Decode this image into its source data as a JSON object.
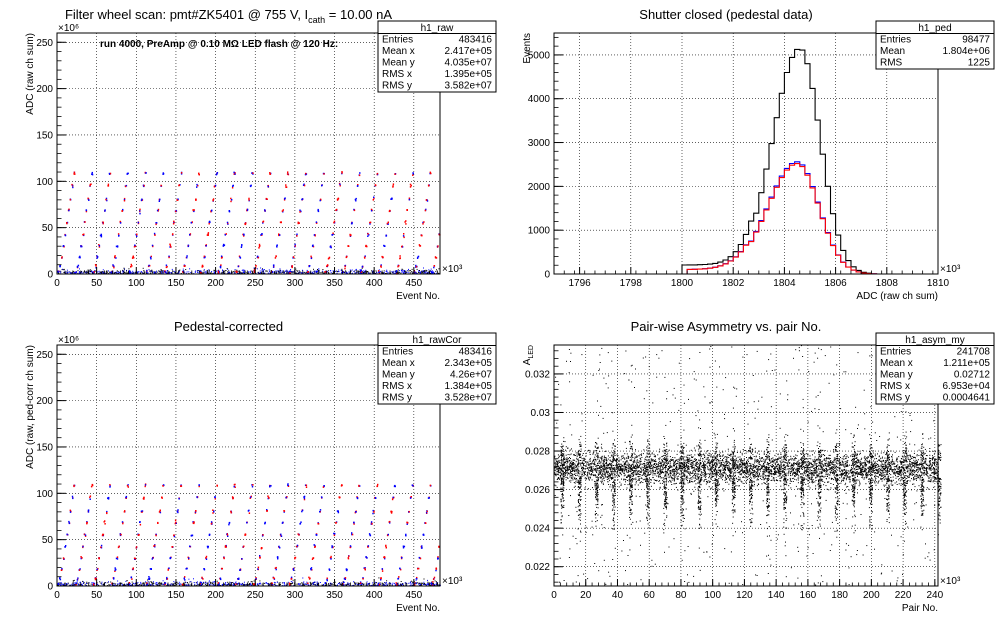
{
  "chart_data": [
    {
      "type": "scatter",
      "title": "Filter wheel scan: pmt#ZK5401 @   755 V, I",
      "title_sub": "cath",
      "title_tail": " = 10.00 nA",
      "annotation": "run 4000, PreAmp @ 0.10 MΩ LED flash @  120 Hz:",
      "xlabel": "Event No.",
      "ylabel": "ADC (raw ch sum)",
      "xlim": [
        0,
        483
      ],
      "ylim": [
        0,
        260
      ],
      "x_multiplier": "×10³",
      "y_multiplier": "×10⁶",
      "xticks": [
        0,
        50,
        100,
        150,
        200,
        250,
        300,
        350,
        400,
        450
      ],
      "yticks": [
        0,
        50,
        100,
        150,
        200,
        250
      ],
      "grid": true,
      "stats": {
        "name": "h1_raw",
        "rows": [
          [
            "Entries",
            "483416"
          ],
          [
            "Mean x",
            "2.417e+05"
          ],
          [
            "Mean y",
            "4.035e+07"
          ],
          [
            "RMS x",
            "1.395e+05"
          ],
          [
            "RMS y",
            "3.582e+07"
          ]
        ]
      },
      "colors": {
        "points_a": "#ff0000",
        "points_b": "#0000ff"
      }
    },
    {
      "type": "line",
      "title": "Shutter closed (pedestal data)",
      "xlabel": "ADC (raw ch sum)",
      "ylabel": "Events",
      "xlim": [
        1795,
        1810
      ],
      "ylim": [
        0,
        5500
      ],
      "x_multiplier": "×10³",
      "xticks": [
        1796,
        1798,
        1800,
        1802,
        1804,
        1806,
        1808,
        1810
      ],
      "yticks": [
        0,
        1000,
        2000,
        3000,
        4000,
        5000
      ],
      "grid": true,
      "series_curves": [
        {
          "color": "#000000",
          "mean": 1804.6,
          "peak": 5150,
          "sigma_left": 1.05,
          "sigma_right": 0.8,
          "floor_start": 1800.0,
          "floor_end": 1807.5
        },
        {
          "color": "#0000ff",
          "mean": 1804.5,
          "peak": 2560,
          "sigma_left": 1.15,
          "sigma_right": 0.85,
          "floor_start": 1800.3,
          "floor_end": 1807.7
        },
        {
          "color": "#ff0000",
          "mean": 1804.5,
          "peak": 2520,
          "sigma_left": 1.15,
          "sigma_right": 0.85,
          "floor_start": 1800.3,
          "floor_end": 1807.7
        }
      ],
      "stats": {
        "name": "h1_ped",
        "rows": [
          [
            "Entries",
            "98477"
          ],
          [
            "Mean",
            "1.804e+06"
          ],
          [
            "RMS",
            "1225"
          ]
        ]
      }
    },
    {
      "type": "scatter",
      "title": "Pedestal-corrected",
      "xlabel": "Event No.",
      "ylabel": "ADC (raw, ped-corr ch sum)",
      "xlim": [
        0,
        483
      ],
      "ylim": [
        0,
        260
      ],
      "x_multiplier": "×10³",
      "y_multiplier": "×10⁶",
      "xticks": [
        0,
        50,
        100,
        150,
        200,
        250,
        300,
        350,
        400,
        450
      ],
      "yticks": [
        0,
        50,
        100,
        150,
        200,
        250
      ],
      "grid": true,
      "stats": {
        "name": "h1_rawCor",
        "rows": [
          [
            "Entries",
            "483416"
          ],
          [
            "Mean x",
            "2.343e+05"
          ],
          [
            "Mean y",
            "4.26e+07"
          ],
          [
            "RMS x",
            "1.384e+05"
          ],
          [
            "RMS y",
            "3.528e+07"
          ]
        ]
      }
    },
    {
      "type": "scatter",
      "title": "Pair-wise Asymmetry vs. pair No.",
      "xlabel": "Pair No.",
      "ylabel": "A",
      "ylabel_sub": "LED",
      "xlim": [
        0,
        242
      ],
      "ylim": [
        0.021,
        0.0335
      ],
      "x_multiplier": "×10³",
      "xticks": [
        0,
        20,
        40,
        60,
        80,
        100,
        120,
        140,
        160,
        180,
        200,
        220,
        240
      ],
      "yticks": [
        0.022,
        0.024,
        0.026,
        0.028,
        0.03,
        0.032
      ],
      "ytick_labels": [
        "0.022",
        "0.024",
        "0.026",
        "0.028",
        "0.03",
        "0.032"
      ],
      "grid": true,
      "band_center": 0.02712,
      "stats": {
        "name": "h1_asym_my",
        "rows": [
          [
            "Entries",
            "241708"
          ],
          [
            "Mean x",
            "1.211e+05"
          ],
          [
            "Mean y",
            "0.02712"
          ],
          [
            "RMS x",
            "6.953e+04"
          ],
          [
            "RMS y",
            "0.0004641"
          ]
        ]
      }
    }
  ]
}
